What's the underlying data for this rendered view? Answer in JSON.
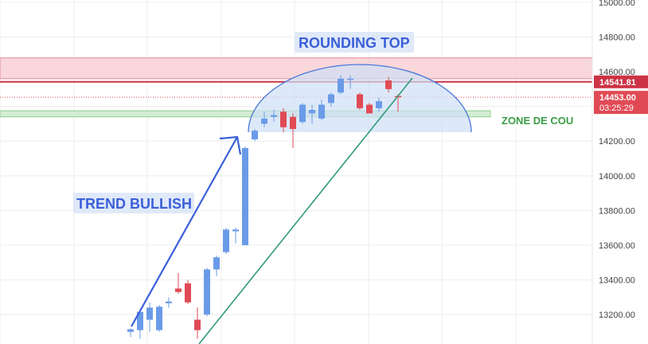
{
  "chart_data": {
    "type": "candlestick",
    "grid": true,
    "yaxis": {
      "ylim": [
        13105,
        15010
      ],
      "ticks": [
        15000,
        14800,
        14600,
        14400,
        14200,
        14000,
        13800,
        13600,
        13400,
        13200
      ],
      "tick_labels": [
        "15000.00",
        "14800.00",
        "14600.00",
        "",
        "14200.00",
        "14000.00",
        "13800.00",
        "13600.00",
        "13400.00",
        "13200.00"
      ]
    },
    "candles": [
      {
        "open": 13100,
        "high": 13120,
        "low": 13070,
        "close": 13115
      },
      {
        "open": 13110,
        "high": 13230,
        "low": 13060,
        "close": 13215
      },
      {
        "open": 13170,
        "high": 13270,
        "low": 13100,
        "close": 13240
      },
      {
        "open": 13110,
        "high": 13255,
        "low": 13100,
        "close": 13245
      },
      {
        "open": 13265,
        "high": 13300,
        "low": 13240,
        "close": 13275
      },
      {
        "open": 13350,
        "high": 13440,
        "low": 13320,
        "close": 13330
      },
      {
        "open": 13380,
        "high": 13400,
        "low": 13260,
        "close": 13270
      },
      {
        "open": 13170,
        "high": 13240,
        "low": 13060,
        "close": 13110
      },
      {
        "open": 13200,
        "high": 13470,
        "low": 13190,
        "close": 13460
      },
      {
        "open": 13460,
        "high": 13540,
        "low": 13420,
        "close": 13530
      },
      {
        "open": 13560,
        "high": 13700,
        "low": 13550,
        "close": 13690
      },
      {
        "open": 13680,
        "high": 13700,
        "low": 13610,
        "close": 13690
      },
      {
        "open": 13600,
        "high": 14170,
        "low": 13600,
        "close": 14160
      },
      {
        "open": 14210,
        "high": 14270,
        "low": 14200,
        "close": 14260
      },
      {
        "open": 14300,
        "high": 14370,
        "low": 14280,
        "close": 14330
      },
      {
        "open": 14340,
        "high": 14380,
        "low": 14310,
        "close": 14350
      },
      {
        "open": 14370,
        "high": 14390,
        "low": 14250,
        "close": 14280
      },
      {
        "open": 14340,
        "high": 14360,
        "low": 14160,
        "close": 14270
      },
      {
        "open": 14310,
        "high": 14420,
        "low": 14300,
        "close": 14410
      },
      {
        "open": 14360,
        "high": 14410,
        "low": 14300,
        "close": 14380
      },
      {
        "open": 14330,
        "high": 14440,
        "low": 14320,
        "close": 14410
      },
      {
        "open": 14420,
        "high": 14480,
        "low": 14400,
        "close": 14470
      },
      {
        "open": 14480,
        "high": 14580,
        "low": 14470,
        "close": 14560
      },
      {
        "open": 14560,
        "high": 14580,
        "low": 14500,
        "close": 14560
      },
      {
        "open": 14470,
        "high": 14480,
        "low": 14380,
        "close": 14390
      },
      {
        "open": 14410,
        "high": 14420,
        "low": 14360,
        "close": 14360
      },
      {
        "open": 14390,
        "high": 14450,
        "low": 14370,
        "close": 14430
      },
      {
        "open": 14550,
        "high": 14570,
        "low": 14480,
        "close": 14500
      },
      {
        "open": 14460,
        "high": 14470,
        "low": 14370,
        "close": 14453
      }
    ],
    "zones": [
      {
        "name": "resistance-zone",
        "y0": 14560,
        "y1": 14680,
        "color": "#f7c9cf"
      },
      {
        "name": "neckline-zone",
        "y0": 14340,
        "y1": 14375,
        "color": "#d4ecd3",
        "label": "ZONE DE COU"
      }
    ],
    "levels": [
      {
        "name": "resistance-line",
        "value": 14541.81,
        "label": "14541.81",
        "color": "#cc3344"
      },
      {
        "name": "current-price-line",
        "value": 14453.0,
        "label": "14453.00",
        "sublabel": "03:25:29",
        "color": "#e04a55"
      }
    ],
    "annotations": {
      "trend_label": "TREND BULLISH",
      "pattern_label": "ROUNDING TOP"
    }
  },
  "colors": {
    "bull": "#6a9be8",
    "bear": "#e04a55",
    "grid": "#eeeeee",
    "arrow": "#3a5fd9",
    "trendline": "#2f9a7a",
    "arc": "#4a7ad8",
    "arc_fill": "#cfe0f6",
    "neck_text": "#3a9d45",
    "note_text": "#3a5fd9",
    "note_bg": "#dde7f8"
  }
}
